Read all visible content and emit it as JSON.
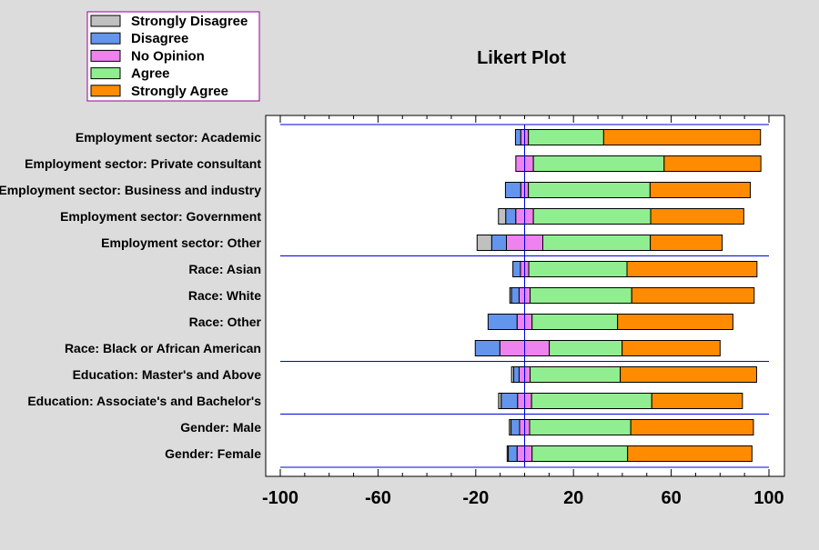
{
  "chart_data": {
    "type": "bar",
    "subtype": "diverging-stacked-horizontal",
    "title": "Likert Plot",
    "xlabel": "",
    "ylabel": "",
    "xlim": [
      -100,
      100
    ],
    "xticks": [
      -100,
      -60,
      -20,
      20,
      60,
      100
    ],
    "grid": false,
    "legend_placement": "top-left",
    "categories": [
      "Employment sector: Academic",
      "Employment sector: Private consultant",
      "Employment sector: Business and industry",
      "Employment sector: Government",
      "Employment sector: Other",
      "Race: Asian",
      "Race: White",
      "Race: Other",
      "Race: Black or African American",
      "Education: Master's and Above",
      "Education: Associate's and Bachelor's",
      "Gender: Male",
      "Gender: Female"
    ],
    "group_breaks_after": [
      4,
      8,
      10
    ],
    "series": [
      {
        "name": "Strongly Disagree",
        "color": "#c0c0c0",
        "values": [
          0,
          0,
          0,
          3.0,
          6.0,
          0,
          0.7,
          0,
          0,
          0.9,
          1.1,
          0.7,
          0.5
        ]
      },
      {
        "name": "Disagree",
        "color": "#6495ed",
        "values": [
          2.2,
          0,
          6.3,
          4.1,
          6.0,
          3.1,
          3.1,
          11.9,
          10.1,
          2.2,
          6.7,
          3.5,
          3.6
        ]
      },
      {
        "name": "No Opinion",
        "color": "#ee82ee",
        "values": [
          3.1,
          7.2,
          3.1,
          7.2,
          14.9,
          3.4,
          4.5,
          6.1,
          20.2,
          4.5,
          5.7,
          4.1,
          6.1
        ]
      },
      {
        "name": "Agree",
        "color": "#90ee90",
        "values": [
          30.8,
          53.5,
          49.8,
          48.0,
          44.0,
          40.2,
          41.6,
          35.0,
          29.8,
          36.9,
          49.2,
          41.4,
          39.1
        ]
      },
      {
        "name": "Strongly Agree",
        "color": "#ff8c00",
        "values": [
          64.2,
          39.6,
          41.0,
          38.1,
          29.4,
          53.2,
          50.1,
          47.2,
          40.1,
          55.8,
          37.1,
          50.2,
          50.9
        ]
      }
    ],
    "line_color": "#0000dd",
    "legend_border_color": "#990099"
  }
}
